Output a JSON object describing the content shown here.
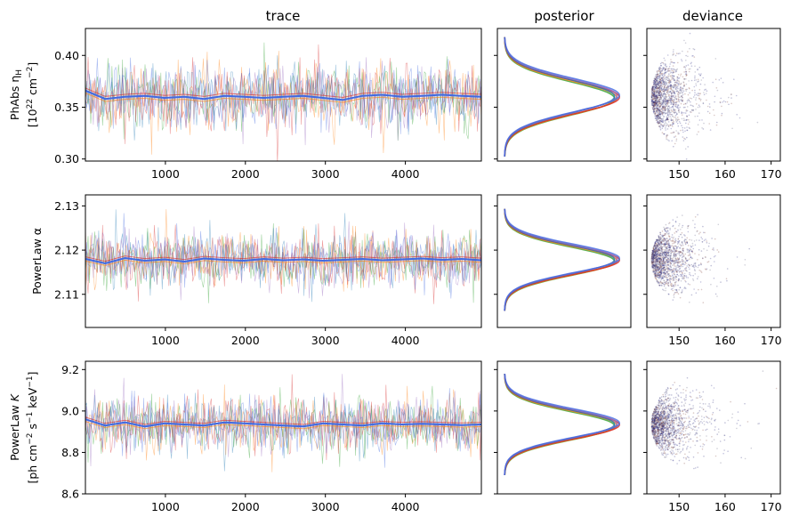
{
  "chart_data": {
    "type": "line",
    "column_titles": [
      "trace",
      "posterior",
      "deviance"
    ],
    "chain_colors": [
      "#1f77b4",
      "#ff7f0e",
      "#2ca02c",
      "#d62728",
      "#9467bd",
      "#4169e1"
    ],
    "trace_xlim": [
      0,
      4950
    ],
    "trace_xticks": [
      1000,
      2000,
      3000,
      4000
    ],
    "trace_xtick_labels": [
      "1000",
      "2000",
      "3000",
      "4000"
    ],
    "deviance_xlim": [
      143,
      172
    ],
    "deviance_xticks": [
      150,
      160,
      170
    ],
    "deviance_xtick_labels": [
      "150",
      "160",
      "170"
    ],
    "deviance_range": [
      144,
      165
    ],
    "parameters": [
      {
        "ylabel_line1": "PhAbs η",
        "ylabel_sub": "H",
        "ylabel_line2_pre": "[10",
        "ylabel_line2_sup": "22",
        "ylabel_line2_mid": " cm",
        "ylabel_line2_sup2": "−2",
        "ylabel_line2_post": "]",
        "ylim": [
          0.298,
          0.426
        ],
        "yticks": [
          0.3,
          0.35,
          0.4
        ],
        "ytick_labels": [
          "0.30",
          "0.35",
          "0.40"
        ],
        "mean": 0.36,
        "sd": 0.016,
        "running_mean": [
          0.366,
          0.358,
          0.36,
          0.361,
          0.359,
          0.36,
          0.358,
          0.361,
          0.36,
          0.359,
          0.36,
          0.361,
          0.359,
          0.357,
          0.361,
          0.362,
          0.36,
          0.361,
          0.362,
          0.361,
          0.36
        ]
      },
      {
        "ylabel_line1": "PowerLaw α",
        "ylim": [
          2.1025,
          2.1325
        ],
        "yticks": [
          2.11,
          2.12,
          2.13
        ],
        "ytick_labels": [
          "2.11",
          "2.12",
          "2.13"
        ],
        "mean": 2.1178,
        "sd": 0.0032,
        "running_mean": [
          2.118,
          2.117,
          2.1182,
          2.1176,
          2.1179,
          2.1174,
          2.1181,
          2.1178,
          2.1176,
          2.118,
          2.1177,
          2.1179,
          2.1176,
          2.1178,
          2.118,
          2.1177,
          2.1179,
          2.1181,
          2.1178,
          2.118,
          2.1177
        ]
      },
      {
        "ylabel_line1_pre": "PowerLaw ",
        "ylabel_line1_italic": "K",
        "ylabel_line2_pre": "[ph cm",
        "ylabel_line2_sup": "−2",
        "ylabel_line2_mid": " s",
        "ylabel_line2_sup2": "−1",
        "ylabel_line2_post": " keV",
        "ylabel_line2_sup3": "−1",
        "ylabel_line2_end": "]",
        "ylim": [
          8.6,
          9.24
        ],
        "yticks": [
          8.6,
          8.8,
          9.0,
          9.2
        ],
        "ytick_labels": [
          "8.6",
          "8.8",
          "9.0",
          "9.2"
        ],
        "mean": 8.935,
        "sd": 0.068,
        "running_mean": [
          8.96,
          8.93,
          8.945,
          8.925,
          8.94,
          8.935,
          8.93,
          8.945,
          8.94,
          8.935,
          8.93,
          8.925,
          8.94,
          8.935,
          8.93,
          8.94,
          8.935,
          8.938,
          8.935,
          8.932,
          8.935
        ]
      }
    ]
  }
}
